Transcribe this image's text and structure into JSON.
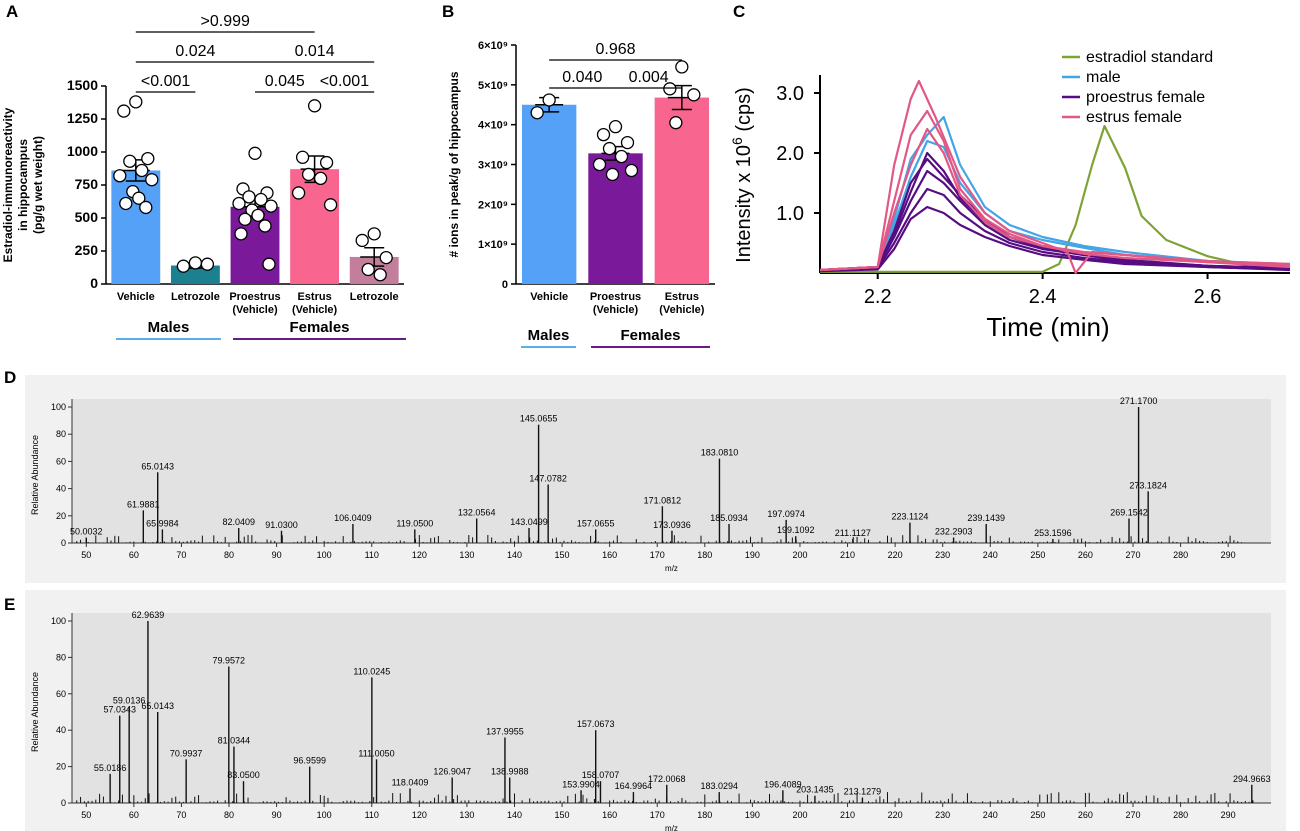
{
  "panels": {
    "A": "A",
    "B": "B",
    "C": "C",
    "D": "D",
    "E": "E"
  },
  "chart_data": [
    {
      "id": "A",
      "type": "bar",
      "ylabel": [
        "Estradiol-immunoreactivity",
        "in hippocampus",
        "(pg/g wet weight)"
      ],
      "ylim": [
        0,
        1500
      ],
      "yticks": [
        0,
        250,
        500,
        750,
        1000,
        1250,
        1500
      ],
      "categories": [
        {
          "label": [
            "Vehicle"
          ],
          "value": 860,
          "sem": 80,
          "color": "#55a1f8",
          "points": [
            1380,
            1310,
            950,
            930,
            860,
            820,
            790,
            700,
            650,
            610,
            580
          ]
        },
        {
          "label": [
            "Letrozole"
          ],
          "value": 140,
          "sem": 20,
          "color": "#1c8091",
          "points": [
            160,
            135,
            150
          ]
        },
        {
          "label": [
            "Proestrus",
            "(Vehicle)"
          ],
          "value": 585,
          "sem": 55,
          "color": "#7a1a9a",
          "points": [
            990,
            720,
            690,
            660,
            640,
            610,
            590,
            560,
            520,
            490,
            440,
            380,
            150
          ]
        },
        {
          "label": [
            "Estrus",
            "(Vehicle)"
          ],
          "value": 870,
          "sem": 100,
          "color": "#f8668f",
          "points": [
            1350,
            960,
            920,
            830,
            800,
            690,
            600
          ]
        },
        {
          "label": [
            "Letrozole"
          ],
          "value": 205,
          "sem": 70,
          "color": "#c27e9a",
          "points": [
            380,
            330,
            200,
            110,
            70
          ]
        }
      ],
      "groups": [
        {
          "name": "Males",
          "color": "#5aaeea"
        },
        {
          "name": "Females",
          "color": "#6a1b8a"
        }
      ],
      "brackets": [
        {
          "from": 0,
          "to": 3,
          "label": ">0.999",
          "level": 0
        },
        {
          "from": 0,
          "to": 2,
          "label": "0.024",
          "level": 1
        },
        {
          "from": 2,
          "to": 4,
          "label": "0.014",
          "level": 1
        },
        {
          "from": 0,
          "to": 1,
          "label": "<0.001",
          "level": 2
        },
        {
          "from": 2,
          "to": 3,
          "label": "0.045",
          "level": 2
        },
        {
          "from": 3,
          "to": 4,
          "label": "<0.001",
          "level": 2
        }
      ]
    },
    {
      "id": "B",
      "type": "bar",
      "ylabel": [
        "# ions in peak/g of hippocampus"
      ],
      "ylim": [
        0,
        6
      ],
      "yticks": [
        "0",
        "1×10⁹",
        "2×10⁹",
        "3×10⁹",
        "4×10⁹",
        "5×10⁹",
        "6×10⁹"
      ],
      "categories": [
        {
          "label": [
            "Vehicle"
          ],
          "value": 4.5,
          "sem": 0.18,
          "color": "#55a1f8",
          "points": [
            4.62,
            4.3
          ]
        },
        {
          "label": [
            "Proestrus",
            "(Vehicle)"
          ],
          "value": 3.28,
          "sem": 0.17,
          "color": "#7a1a9a",
          "points": [
            3.95,
            3.75,
            3.55,
            3.4,
            3.2,
            3.0,
            2.85,
            2.75
          ]
        },
        {
          "label": [
            "Estrus",
            "(Vehicle)"
          ],
          "value": 4.68,
          "sem": 0.3,
          "color": "#f8668f",
          "points": [
            5.45,
            4.9,
            4.75,
            4.05
          ]
        }
      ],
      "groups": [
        {
          "name": "Males",
          "color": "#5aaeea"
        },
        {
          "name": "Females",
          "color": "#6a1b8a"
        }
      ],
      "brackets": [
        {
          "from": 0,
          "to": 2,
          "label": "0.968",
          "level": 0
        },
        {
          "from": 0,
          "to": 1,
          "label": "0.040",
          "level": 1
        },
        {
          "from": 1,
          "to": 2,
          "label": "0.004",
          "level": 1
        }
      ]
    },
    {
      "id": "C",
      "type": "line",
      "xlabel": "Time (min)",
      "ylabel": "Intensity x 10",
      "ylabel_sup": "6",
      "ylabel_unit": " (cps)",
      "xlim": [
        2.13,
        2.7
      ],
      "ylim": [
        0,
        3.3
      ],
      "xticks": [
        2.2,
        2.4,
        2.6
      ],
      "yticks": [
        1.0,
        2.0,
        3.0
      ],
      "legend": [
        {
          "name": "estradiol standard",
          "color": "#7ea335"
        },
        {
          "name": "male",
          "color": "#43a4e6"
        },
        {
          "name": "proestrus female",
          "color": "#560c82"
        },
        {
          "name": "estrus female",
          "color": "#e25785"
        }
      ],
      "series": [
        {
          "name": "estradiol standard",
          "color": "#7ea335",
          "x": [
            2.13,
            2.4,
            2.42,
            2.44,
            2.46,
            2.475,
            2.5,
            2.52,
            2.55,
            2.6,
            2.65,
            2.7
          ],
          "y": [
            0.02,
            0.02,
            0.15,
            0.8,
            1.8,
            2.45,
            1.75,
            0.95,
            0.55,
            0.28,
            0.12,
            0.05
          ]
        },
        {
          "name": "male",
          "color": "#43a4e6",
          "x": [
            2.13,
            2.2,
            2.22,
            2.24,
            2.26,
            2.28,
            2.3,
            2.33,
            2.36,
            2.4,
            2.45,
            2.5,
            2.6,
            2.7
          ],
          "y": [
            0.05,
            0.08,
            0.9,
            1.9,
            2.3,
            2.6,
            1.8,
            1.1,
            0.8,
            0.6,
            0.45,
            0.35,
            0.2,
            0.15
          ]
        },
        {
          "name": "male",
          "color": "#43a4e6",
          "x": [
            2.13,
            2.2,
            2.22,
            2.24,
            2.26,
            2.28,
            2.3,
            2.33,
            2.36,
            2.4,
            2.45,
            2.5,
            2.6,
            2.7
          ],
          "y": [
            0.05,
            0.1,
            0.8,
            1.6,
            2.2,
            2.1,
            1.5,
            1.0,
            0.7,
            0.55,
            0.42,
            0.3,
            0.18,
            0.12
          ]
        },
        {
          "name": "proestrus female",
          "color": "#560c82",
          "x": [
            2.13,
            2.2,
            2.22,
            2.24,
            2.26,
            2.28,
            2.3,
            2.33,
            2.36,
            2.4,
            2.45,
            2.5,
            2.6,
            2.7
          ],
          "y": [
            0.05,
            0.1,
            0.6,
            1.2,
            1.7,
            1.5,
            1.2,
            0.8,
            0.55,
            0.4,
            0.3,
            0.2,
            0.12,
            0.08
          ]
        },
        {
          "name": "proestrus female",
          "color": "#560c82",
          "x": [
            2.13,
            2.2,
            2.22,
            2.24,
            2.26,
            2.28,
            2.3,
            2.33,
            2.36,
            2.4,
            2.45,
            2.5,
            2.6,
            2.7
          ],
          "y": [
            0.04,
            0.08,
            0.5,
            1.0,
            1.4,
            1.3,
            1.0,
            0.7,
            0.5,
            0.35,
            0.25,
            0.18,
            0.1,
            0.06
          ]
        },
        {
          "name": "proestrus female",
          "color": "#560c82",
          "x": [
            2.13,
            2.2,
            2.22,
            2.24,
            2.26,
            2.28,
            2.3,
            2.33,
            2.36,
            2.4,
            2.45,
            2.5,
            2.6,
            2.7
          ],
          "y": [
            0.05,
            0.1,
            0.7,
            1.5,
            1.9,
            1.6,
            1.3,
            0.9,
            0.6,
            0.45,
            0.32,
            0.22,
            0.12,
            0.08
          ]
        },
        {
          "name": "proestrus female",
          "color": "#560c82",
          "x": [
            2.13,
            2.2,
            2.22,
            2.24,
            2.26,
            2.28,
            2.3,
            2.33,
            2.36,
            2.4,
            2.45,
            2.5,
            2.6,
            2.7
          ],
          "y": [
            0.03,
            0.06,
            0.4,
            0.9,
            1.1,
            1.0,
            0.8,
            0.6,
            0.45,
            0.3,
            0.22,
            0.15,
            0.1,
            0.05
          ]
        },
        {
          "name": "proestrus female",
          "color": "#560c82",
          "x": [
            2.13,
            2.2,
            2.22,
            2.24,
            2.26,
            2.28,
            2.3,
            2.33,
            2.36,
            2.4,
            2.45,
            2.5,
            2.6,
            2.7
          ],
          "y": [
            0.05,
            0.09,
            0.65,
            1.35,
            2.0,
            1.7,
            1.25,
            0.85,
            0.6,
            0.42,
            0.3,
            0.2,
            0.12,
            0.07
          ]
        },
        {
          "name": "estrus female",
          "color": "#e25785",
          "x": [
            2.13,
            2.2,
            2.22,
            2.24,
            2.25,
            2.27,
            2.3,
            2.33,
            2.36,
            2.4,
            2.43,
            2.44,
            2.46,
            2.5,
            2.6,
            2.7
          ],
          "y": [
            0.05,
            0.1,
            1.8,
            2.9,
            3.2,
            2.6,
            1.6,
            1.0,
            0.7,
            0.5,
            0.35,
            0.0,
            0.35,
            0.3,
            0.2,
            0.15
          ]
        },
        {
          "name": "estrus female",
          "color": "#e25785",
          "x": [
            2.13,
            2.2,
            2.22,
            2.24,
            2.26,
            2.28,
            2.3,
            2.33,
            2.36,
            2.4,
            2.45,
            2.5,
            2.6,
            2.7
          ],
          "y": [
            0.05,
            0.1,
            1.2,
            2.3,
            2.7,
            2.2,
            1.4,
            0.9,
            0.65,
            0.45,
            0.35,
            0.3,
            0.2,
            0.12
          ]
        },
        {
          "name": "estrus female",
          "color": "#e25785",
          "x": [
            2.13,
            2.2,
            2.22,
            2.24,
            2.26,
            2.28,
            2.3,
            2.33,
            2.36,
            2.4,
            2.45,
            2.5,
            2.6,
            2.7
          ],
          "y": [
            0.05,
            0.1,
            1.0,
            1.8,
            2.4,
            2.0,
            1.3,
            0.85,
            0.6,
            0.45,
            0.32,
            0.25,
            0.18,
            0.1
          ]
        }
      ]
    },
    {
      "id": "D",
      "type": "bar",
      "ylabel": "Relative Abundance",
      "xlabel": "m/z",
      "xlim": [
        47,
        299
      ],
      "ylim": [
        0,
        100
      ],
      "xticks": [
        50,
        60,
        70,
        80,
        90,
        100,
        110,
        120,
        130,
        140,
        150,
        160,
        170,
        180,
        190,
        200,
        210,
        220,
        230,
        240,
        250,
        260,
        270,
        280,
        290
      ],
      "yticks": [
        0,
        20,
        40,
        60,
        80,
        100
      ],
      "peaks": [
        {
          "mz": 50.0032,
          "abundance": 4,
          "label": "50.0032"
        },
        {
          "mz": 61.9881,
          "abundance": 24,
          "label": "61.9881"
        },
        {
          "mz": 65.0143,
          "abundance": 52,
          "label": "65.0143"
        },
        {
          "mz": 65.9984,
          "abundance": 10,
          "label": "65.9984"
        },
        {
          "mz": 82.0409,
          "abundance": 11,
          "label": "82.0409"
        },
        {
          "mz": 91.03,
          "abundance": 9,
          "label": "91.0300"
        },
        {
          "mz": 106.0409,
          "abundance": 14,
          "label": "106.0409"
        },
        {
          "mz": 119.05,
          "abundance": 10,
          "label": "119.0500"
        },
        {
          "mz": 132.0564,
          "abundance": 18,
          "label": "132.0564"
        },
        {
          "mz": 143.0499,
          "abundance": 11,
          "label": "143.0499"
        },
        {
          "mz": 145.0655,
          "abundance": 87,
          "label": "145.0655"
        },
        {
          "mz": 147.0782,
          "abundance": 43,
          "label": "147.0782"
        },
        {
          "mz": 157.0655,
          "abundance": 10,
          "label": "157.0655"
        },
        {
          "mz": 171.0812,
          "abundance": 27,
          "label": "171.0812"
        },
        {
          "mz": 173.0936,
          "abundance": 9,
          "label": "173.0936"
        },
        {
          "mz": 183.081,
          "abundance": 62,
          "label": "183.0810"
        },
        {
          "mz": 185.0934,
          "abundance": 14,
          "label": "185.0934"
        },
        {
          "mz": 197.0974,
          "abundance": 17,
          "label": "197.0974"
        },
        {
          "mz": 199.1092,
          "abundance": 5,
          "label": "199.1092"
        },
        {
          "mz": 211.1127,
          "abundance": 3,
          "label": "211.1127"
        },
        {
          "mz": 223.1124,
          "abundance": 15,
          "label": "223.1124"
        },
        {
          "mz": 232.2903,
          "abundance": 4,
          "label": "232.2903"
        },
        {
          "mz": 239.1439,
          "abundance": 14,
          "label": "239.1439"
        },
        {
          "mz": 253.1596,
          "abundance": 3,
          "label": "253.1596"
        },
        {
          "mz": 269.1542,
          "abundance": 18,
          "label": "269.1542"
        },
        {
          "mz": 271.17,
          "abundance": 100,
          "label": "271.1700"
        },
        {
          "mz": 273.1824,
          "abundance": 38,
          "label": "273.1824"
        }
      ]
    },
    {
      "id": "E",
      "type": "bar",
      "ylabel": "Relative Abundance",
      "xlabel": "m/z",
      "xlim": [
        47,
        299
      ],
      "ylim": [
        0,
        100
      ],
      "xticks": [
        50,
        60,
        70,
        80,
        90,
        100,
        110,
        120,
        130,
        140,
        150,
        160,
        170,
        180,
        190,
        200,
        210,
        220,
        230,
        240,
        250,
        260,
        270,
        280,
        290
      ],
      "yticks": [
        0,
        20,
        40,
        60,
        80,
        100
      ],
      "peaks": [
        {
          "mz": 55.0186,
          "abundance": 16,
          "label": "55.0186"
        },
        {
          "mz": 57.0343,
          "abundance": 48,
          "label": "57.0343"
        },
        {
          "mz": 59.0136,
          "abundance": 53,
          "label": "59.0136"
        },
        {
          "mz": 62.9639,
          "abundance": 100,
          "label": "62.9639"
        },
        {
          "mz": 65.0143,
          "abundance": 50,
          "label": "65.0143"
        },
        {
          "mz": 70.9937,
          "abundance": 24,
          "label": "70.9937"
        },
        {
          "mz": 79.9572,
          "abundance": 75,
          "label": "79.9572"
        },
        {
          "mz": 81.0344,
          "abundance": 31,
          "label": "81.0344"
        },
        {
          "mz": 83.05,
          "abundance": 12,
          "label": "83.0500"
        },
        {
          "mz": 96.9599,
          "abundance": 20,
          "label": "96.9599"
        },
        {
          "mz": 110.0245,
          "abundance": 69,
          "label": "110.0245"
        },
        {
          "mz": 111.005,
          "abundance": 24,
          "label": "111.0050"
        },
        {
          "mz": 118.0409,
          "abundance": 8,
          "label": "118.0409"
        },
        {
          "mz": 126.9047,
          "abundance": 14,
          "label": "126.9047"
        },
        {
          "mz": 137.9955,
          "abundance": 36,
          "label": "137.9955"
        },
        {
          "mz": 138.9988,
          "abundance": 14,
          "label": "138.9988"
        },
        {
          "mz": 153.9904,
          "abundance": 7,
          "label": "153.9904"
        },
        {
          "mz": 157.0673,
          "abundance": 40,
          "label": "157.0673"
        },
        {
          "mz": 158.0707,
          "abundance": 12,
          "label": "158.0707"
        },
        {
          "mz": 164.9964,
          "abundance": 6,
          "label": "164.9964"
        },
        {
          "mz": 172.0068,
          "abundance": 10,
          "label": "172.0068"
        },
        {
          "mz": 183.0294,
          "abundance": 6,
          "label": "183.0294"
        },
        {
          "mz": 196.4089,
          "abundance": 7,
          "label": "196.4089"
        },
        {
          "mz": 203.1435,
          "abundance": 4,
          "label": "203.1435"
        },
        {
          "mz": 213.1279,
          "abundance": 3,
          "label": "213.1279"
        },
        {
          "mz": 294.9663,
          "abundance": 10,
          "label": "294.9663"
        }
      ]
    }
  ]
}
